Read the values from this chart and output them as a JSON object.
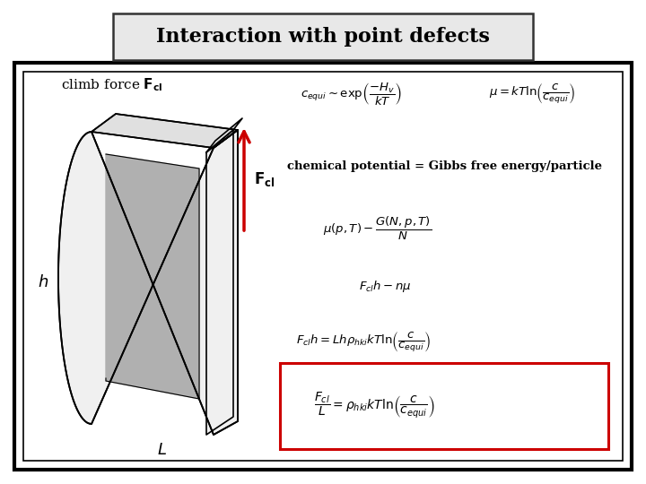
{
  "title": "Interaction with point defects",
  "title_fontsize": 16,
  "background_color": "#ffffff",
  "title_box_facecolor": "#e8e8e8",
  "title_box_edgecolor": "#333333",
  "main_box_edgecolor": "#000000",
  "arrow_color": "#cc0000",
  "box_color_eq6": "#cc0000",
  "label_h": "$h$",
  "label_L": "$L$"
}
